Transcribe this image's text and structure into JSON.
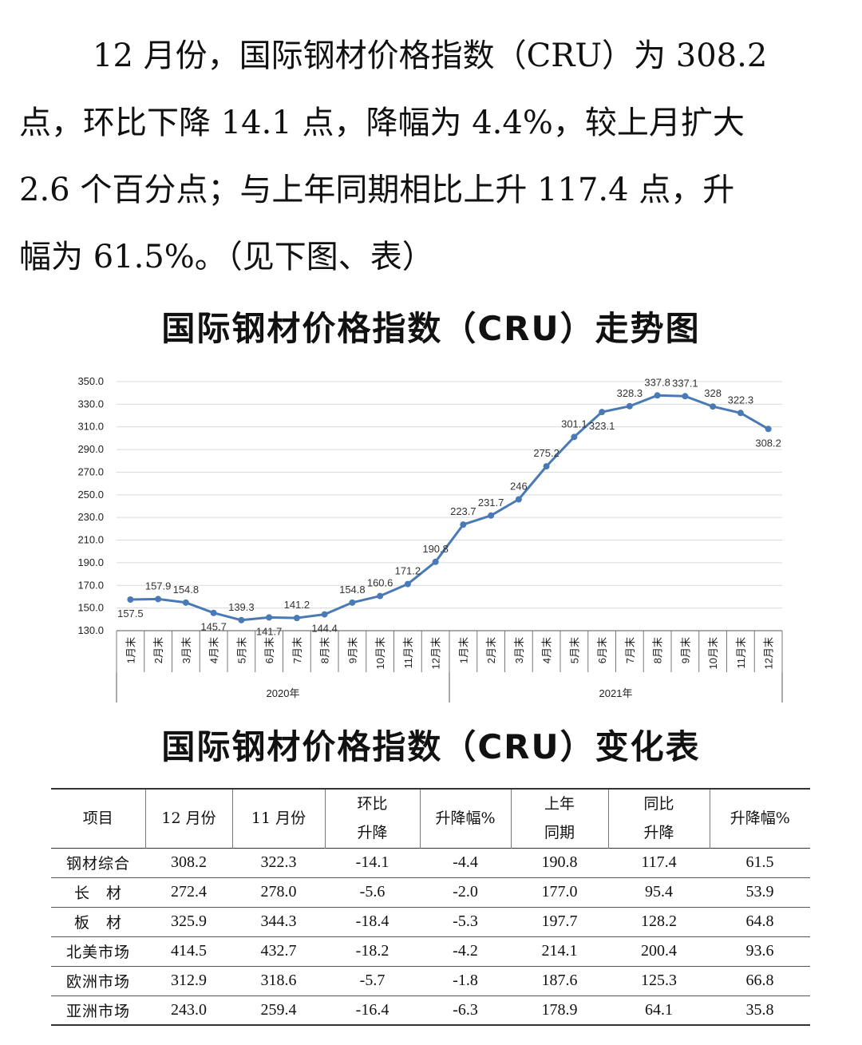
{
  "paragraph": {
    "lines": [
      "12 月份，国际钢材价格指数（CRU）为 308.2",
      "点，环比下降 14.1 点，降幅为 4.4%，较上月扩大",
      "2.6 个百分点；与上年同期相比上升 117.4 点，升",
      "幅为 61.5%。（见下图、表）"
    ]
  },
  "chart_title": "国际钢材价格指数（CRU）走势图",
  "chart_data": {
    "type": "line",
    "title": "国际钢材价格指数（CRU）走势图",
    "years": [
      "2020年",
      "2021年"
    ],
    "categories": [
      "1月末",
      "2月末",
      "3月末",
      "4月末",
      "5月末",
      "6月末",
      "7月末",
      "8月末",
      "9月末",
      "10月末",
      "11月末",
      "12月末",
      "1月末",
      "2月末",
      "3月末",
      "4月末",
      "5月末",
      "6月末",
      "7月末",
      "8月末",
      "9月末",
      "10月末",
      "11月末",
      "12月末"
    ],
    "values": [
      157.5,
      157.9,
      154.8,
      145.7,
      139.3,
      141.7,
      141.2,
      144.4,
      154.8,
      160.6,
      171.2,
      190.8,
      223.7,
      231.7,
      246,
      275.2,
      301.1,
      323.1,
      328.3,
      337.8,
      337.1,
      328,
      322.3,
      308.2
    ],
    "labels": [
      "157.5",
      "157.9",
      "154.8",
      "145.7",
      "139.3",
      "141.7",
      "141.2",
      "144.4",
      "154.8",
      "160.6",
      "171.2",
      "190.8",
      "223.7",
      "231.7",
      "246",
      "275.2",
      "301.1",
      "323.1",
      "328.3",
      "337.8",
      "337.1",
      "328",
      "322.3",
      "308.2"
    ],
    "yticks": [
      "130.0",
      "150.0",
      "170.0",
      "190.0",
      "210.0",
      "230.0",
      "250.0",
      "270.0",
      "290.0",
      "310.0",
      "330.0",
      "350.0"
    ],
    "ylim": [
      130,
      350
    ],
    "color": "#4a7ab5",
    "grid": true
  },
  "table_title": "国际钢材价格指数（CRU）变化表",
  "table": {
    "headers": [
      [
        "项目"
      ],
      [
        "12 月份"
      ],
      [
        "11 月份"
      ],
      [
        "环比",
        "升降"
      ],
      [
        "升降幅%"
      ],
      [
        "上年",
        "同期"
      ],
      [
        "同比",
        "升降"
      ],
      [
        "升降幅%"
      ]
    ],
    "rows": [
      [
        "钢材综合",
        "308.2",
        "322.3",
        "-14.1",
        "-4.4",
        "190.8",
        "117.4",
        "61.5"
      ],
      [
        "长　材",
        "272.4",
        "278.0",
        "-5.6",
        "-2.0",
        "177.0",
        "95.4",
        "53.9"
      ],
      [
        "板　材",
        "325.9",
        "344.3",
        "-18.4",
        "-5.3",
        "197.7",
        "128.2",
        "64.8"
      ],
      [
        "北美市场",
        "414.5",
        "432.7",
        "-18.2",
        "-4.2",
        "214.1",
        "200.4",
        "93.6"
      ],
      [
        "欧洲市场",
        "312.9",
        "318.6",
        "-5.7",
        "-1.8",
        "187.6",
        "125.3",
        "66.8"
      ],
      [
        "亚洲市场",
        "243.0",
        "259.4",
        "-16.4",
        "-6.3",
        "178.9",
        "64.1",
        "35.8"
      ]
    ]
  }
}
